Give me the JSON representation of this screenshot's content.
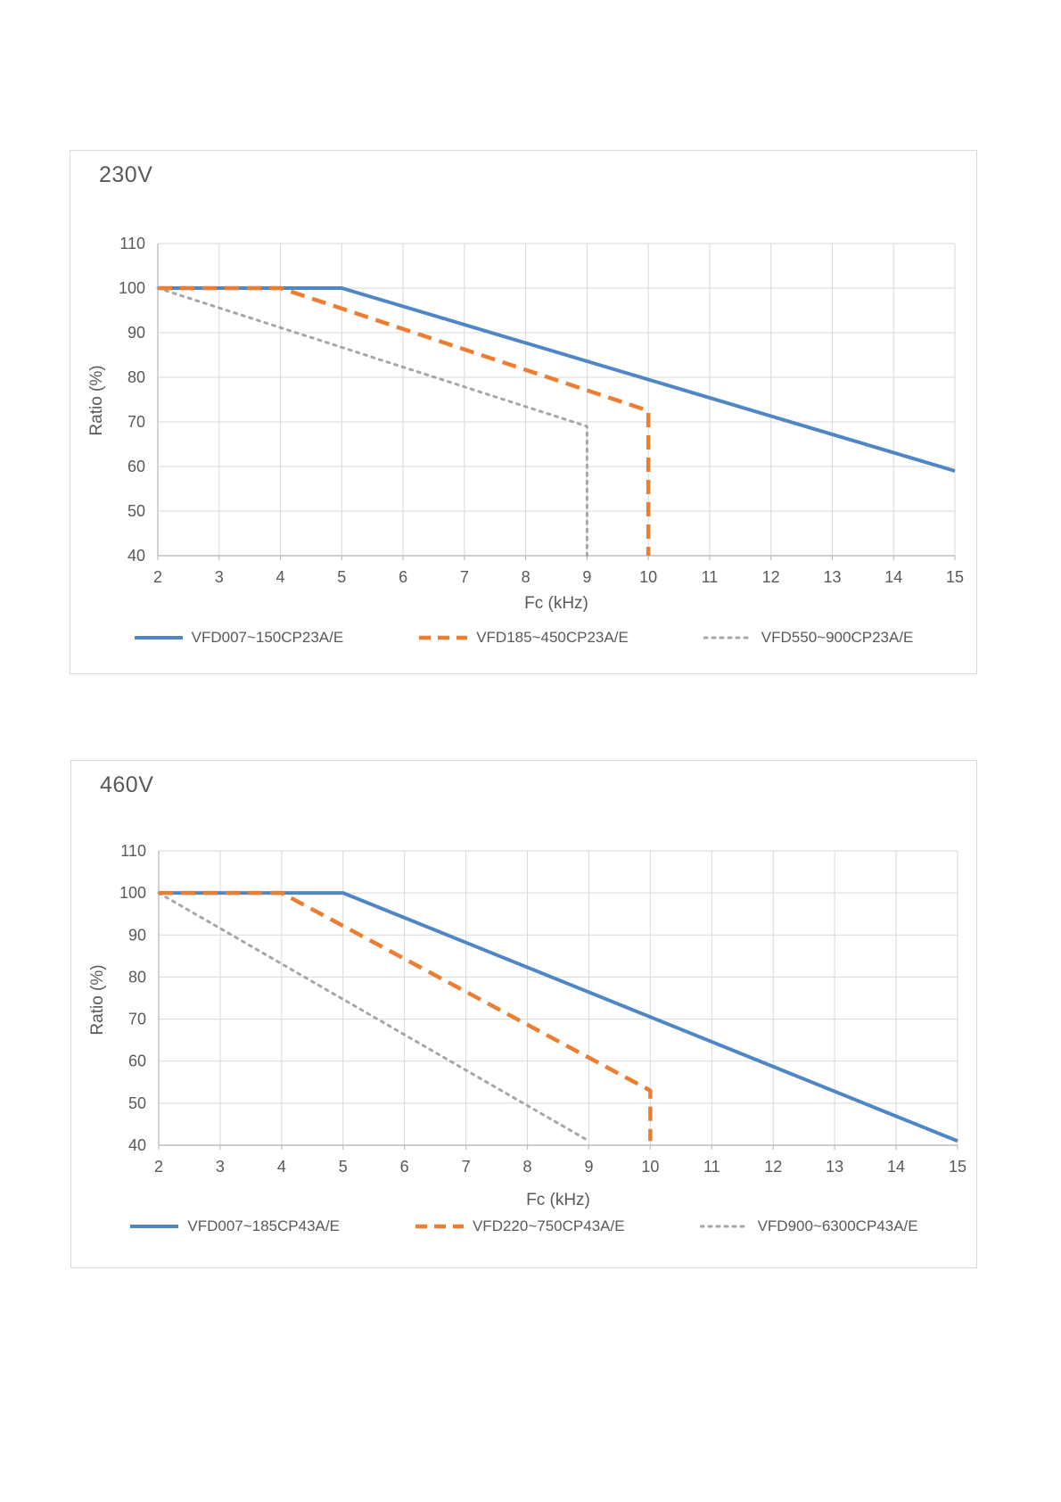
{
  "page": {
    "background": "#ffffff",
    "text_color": "#595959",
    "grid_color": "#d9d9d9",
    "axis_color": "#bfbfbf"
  },
  "chart_data": [
    {
      "type": "line",
      "title": "230V",
      "xlabel": "Fc (kHz)",
      "ylabel": "Ratio (%)",
      "xlim": [
        2,
        15
      ],
      "ylim": [
        40,
        110
      ],
      "x_ticks": [
        2,
        3,
        4,
        5,
        6,
        7,
        8,
        9,
        10,
        11,
        12,
        13,
        14,
        15
      ],
      "y_ticks": [
        40,
        50,
        60,
        70,
        80,
        90,
        100,
        110
      ],
      "grid": true,
      "legend_position": "bottom",
      "series": [
        {
          "name": "VFD007~150CP23A/E",
          "style": "solid",
          "color": "#4f86c6",
          "points": [
            [
              2,
              100
            ],
            [
              5,
              100
            ],
            [
              15,
              59
            ]
          ]
        },
        {
          "name": "VFD185~450CP23A/E",
          "style": "dashed",
          "color": "#ed7d31",
          "points": [
            [
              2,
              100
            ],
            [
              4,
              100
            ],
            [
              10,
              72.5
            ],
            [
              10,
              40
            ]
          ]
        },
        {
          "name": "VFD550~900CP23A/E",
          "style": "dotted",
          "color": "#a6a6a6",
          "points": [
            [
              2,
              100
            ],
            [
              9,
              69
            ],
            [
              9,
              40
            ]
          ]
        }
      ]
    },
    {
      "type": "line",
      "title": "460V",
      "xlabel": "Fc (kHz)",
      "ylabel": "Ratio (%)",
      "xlim": [
        2,
        15
      ],
      "ylim": [
        40,
        110
      ],
      "x_ticks": [
        2,
        3,
        4,
        5,
        6,
        7,
        8,
        9,
        10,
        11,
        12,
        13,
        14,
        15
      ],
      "y_ticks": [
        40,
        50,
        60,
        70,
        80,
        90,
        100,
        110
      ],
      "grid": true,
      "legend_position": "bottom",
      "series": [
        {
          "name": "VFD007~185CP43A/E",
          "style": "solid",
          "color": "#4f86c6",
          "points": [
            [
              2,
              100
            ],
            [
              5,
              100
            ],
            [
              15,
              41
            ]
          ]
        },
        {
          "name": "VFD220~750CP43A/E",
          "style": "dashed",
          "color": "#ed7d31",
          "points": [
            [
              2,
              100
            ],
            [
              4,
              100
            ],
            [
              10,
              53
            ],
            [
              10,
              41
            ]
          ]
        },
        {
          "name": "VFD900~6300CP43A/E",
          "style": "dotted",
          "color": "#a6a6a6",
          "points": [
            [
              2,
              100
            ],
            [
              9,
              41
            ]
          ]
        }
      ]
    }
  ]
}
